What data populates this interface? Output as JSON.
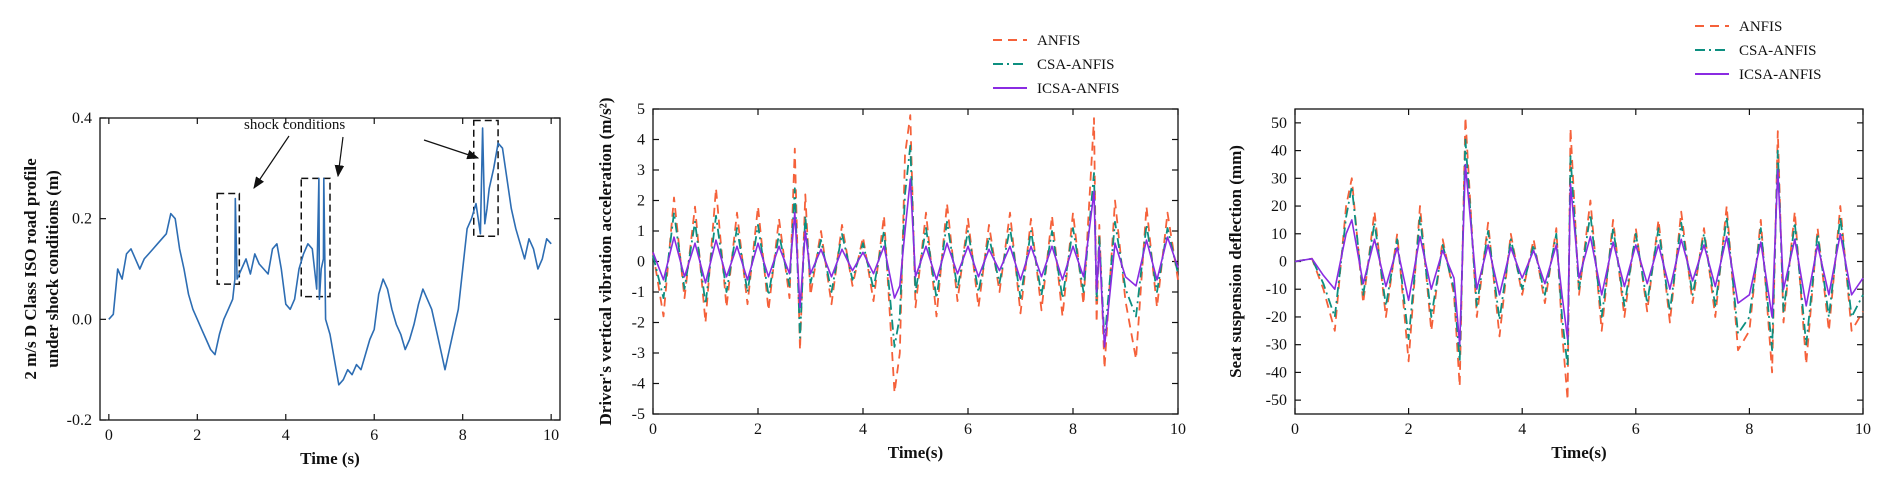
{
  "colors": {
    "anfis": "#f5613a",
    "csa": "#0d8f80",
    "icsa": "#8a2be2",
    "road": "#2d6db3"
  },
  "annotation": "shock conditions",
  "chart_data": [
    {
      "type": "line",
      "title": "",
      "xlabel": "Time (s)",
      "ylabel_lines": [
        "2 m/s D Class ISO road profile",
        "under shock conditions (m)"
      ],
      "xlim": [
        -0.2,
        10.2
      ],
      "ylim": [
        -0.2,
        0.4
      ],
      "xticks": [
        0,
        2,
        4,
        6,
        8,
        10
      ],
      "xtick_labels": [
        "0",
        "2",
        "4",
        "6",
        "8",
        "10"
      ],
      "yticks": [
        -0.2,
        0.0,
        0.2,
        0.4
      ],
      "ytick_labels": [
        "-0.2",
        "0.0",
        "0.2",
        "0.4"
      ],
      "series": [
        {
          "name": "road profile",
          "color": "#2d6db3",
          "x": [
            0,
            0.1,
            0.2,
            0.3,
            0.4,
            0.5,
            0.6,
            0.7,
            0.8,
            0.9,
            1.0,
            1.1,
            1.2,
            1.3,
            1.4,
            1.5,
            1.6,
            1.7,
            1.8,
            1.9,
            2.0,
            2.1,
            2.2,
            2.3,
            2.4,
            2.5,
            2.6,
            2.7,
            2.8,
            2.85,
            2.86,
            2.9,
            3.0,
            3.1,
            3.2,
            3.3,
            3.4,
            3.5,
            3.6,
            3.7,
            3.8,
            3.9,
            4.0,
            4.1,
            4.2,
            4.3,
            4.4,
            4.5,
            4.6,
            4.7,
            4.75,
            4.76,
            4.8,
            4.85,
            4.86,
            4.9,
            5.0,
            5.1,
            5.2,
            5.3,
            5.4,
            5.5,
            5.6,
            5.7,
            5.8,
            5.9,
            6.0,
            6.1,
            6.2,
            6.3,
            6.4,
            6.5,
            6.6,
            6.7,
            6.8,
            6.9,
            7.0,
            7.1,
            7.2,
            7.3,
            7.4,
            7.5,
            7.6,
            7.7,
            7.8,
            7.9,
            8.0,
            8.1,
            8.2,
            8.3,
            8.4,
            8.45,
            8.5,
            8.55,
            8.6,
            8.7,
            8.8,
            8.9,
            9.0,
            9.1,
            9.2,
            9.3,
            9.4,
            9.5,
            9.6,
            9.7,
            9.8,
            9.9,
            10.0
          ],
          "y": [
            0.0,
            0.01,
            0.1,
            0.08,
            0.13,
            0.14,
            0.12,
            0.1,
            0.12,
            0.13,
            0.14,
            0.15,
            0.16,
            0.17,
            0.21,
            0.2,
            0.14,
            0.1,
            0.05,
            0.02,
            0.0,
            -0.02,
            -0.04,
            -0.06,
            -0.07,
            -0.03,
            0.0,
            0.02,
            0.04,
            0.08,
            0.24,
            0.08,
            0.1,
            0.12,
            0.09,
            0.13,
            0.11,
            0.1,
            0.09,
            0.14,
            0.15,
            0.1,
            0.03,
            0.02,
            0.04,
            0.1,
            0.13,
            0.15,
            0.14,
            0.06,
            0.28,
            0.04,
            0.1,
            0.12,
            0.28,
            0.0,
            -0.03,
            -0.08,
            -0.13,
            -0.12,
            -0.1,
            -0.11,
            -0.09,
            -0.1,
            -0.07,
            -0.04,
            -0.02,
            0.05,
            0.08,
            0.06,
            0.02,
            -0.01,
            -0.03,
            -0.06,
            -0.04,
            -0.01,
            0.03,
            0.06,
            0.04,
            0.02,
            -0.02,
            -0.06,
            -0.1,
            -0.06,
            -0.02,
            0.02,
            0.1,
            0.18,
            0.2,
            0.23,
            0.17,
            0.38,
            0.19,
            0.22,
            0.26,
            0.3,
            0.35,
            0.34,
            0.28,
            0.22,
            0.18,
            0.15,
            0.12,
            0.16,
            0.14,
            0.1,
            0.12,
            0.16,
            0.15
          ]
        }
      ],
      "annotations": [
        {
          "text": "shock conditions",
          "boxes": [
            [
              2.45,
              2.95,
              0.07,
              0.25
            ],
            [
              4.35,
              5.0,
              0.045,
              0.28
            ],
            [
              8.25,
              8.8,
              0.165,
              0.395
            ]
          ]
        }
      ]
    },
    {
      "type": "line",
      "title": "",
      "xlabel": "Time(s)",
      "ylabel": "Driver's vertical vibration acceleration (m/s²)",
      "xlim": [
        0,
        10
      ],
      "ylim": [
        -5,
        5
      ],
      "xticks": [
        0,
        2,
        4,
        6,
        8,
        10
      ],
      "xtick_labels": [
        "0",
        "2",
        "4",
        "6",
        "8",
        "10"
      ],
      "yticks": [
        -5,
        -4,
        -3,
        -2,
        -1,
        0,
        1,
        2,
        3,
        4,
        5
      ],
      "ytick_labels": [
        "-5",
        "-4",
        "-3",
        "-2",
        "-1",
        "0",
        "1",
        "2",
        "3",
        "4",
        "5"
      ],
      "legend": [
        "ANFIS",
        "CSA-ANFIS",
        "ICSA-ANFIS"
      ],
      "legend_position": "top-right",
      "series": [
        {
          "name": "ANFIS",
          "style": "dashed",
          "color": "#f5613a",
          "x": [
            0,
            0.2,
            0.4,
            0.6,
            0.8,
            1.0,
            1.2,
            1.4,
            1.6,
            1.8,
            2.0,
            2.2,
            2.4,
            2.6,
            2.7,
            2.8,
            2.9,
            3.0,
            3.2,
            3.4,
            3.6,
            3.8,
            4.0,
            4.2,
            4.4,
            4.6,
            4.7,
            4.8,
            4.9,
            5.0,
            5.2,
            5.4,
            5.6,
            5.8,
            6.0,
            6.2,
            6.4,
            6.6,
            6.8,
            7.0,
            7.2,
            7.4,
            7.6,
            7.8,
            8.0,
            8.2,
            8.4,
            8.45,
            8.5,
            8.6,
            8.8,
            9.0,
            9.2,
            9.4,
            9.6,
            9.8,
            10.0
          ],
          "y": [
            0.3,
            -1.8,
            2.1,
            -1.2,
            1.8,
            -2.0,
            2.4,
            -1.5,
            1.6,
            -1.4,
            1.8,
            -1.6,
            1.4,
            -1.2,
            3.7,
            -2.9,
            2.2,
            -1.1,
            1.0,
            -1.4,
            1.2,
            -0.8,
            0.8,
            -1.3,
            1.5,
            -4.3,
            -3.0,
            3.5,
            4.8,
            -1.5,
            1.6,
            -1.8,
            1.9,
            -1.3,
            1.4,
            -1.5,
            1.2,
            -1.0,
            1.6,
            -1.7,
            1.4,
            -1.6,
            1.5,
            -1.8,
            1.6,
            -1.4,
            4.7,
            -2.0,
            1.2,
            -3.5,
            2.0,
            -1.3,
            -3.2,
            1.8,
            -1.5,
            1.6,
            -0.6
          ]
        },
        {
          "name": "CSA-ANFIS",
          "style": "dashdot",
          "color": "#0d8f80",
          "x": [
            0,
            0.2,
            0.4,
            0.6,
            0.8,
            1.0,
            1.2,
            1.4,
            1.6,
            1.8,
            2.0,
            2.2,
            2.4,
            2.6,
            2.7,
            2.8,
            2.9,
            3.0,
            3.2,
            3.4,
            3.6,
            3.8,
            4.0,
            4.2,
            4.4,
            4.6,
            4.7,
            4.8,
            4.9,
            5.0,
            5.2,
            5.4,
            5.6,
            5.8,
            6.0,
            6.2,
            6.4,
            6.6,
            6.8,
            7.0,
            7.2,
            7.4,
            7.6,
            7.8,
            8.0,
            8.2,
            8.4,
            8.45,
            8.5,
            8.6,
            8.8,
            9.0,
            9.2,
            9.4,
            9.6,
            9.8,
            10.0
          ],
          "y": [
            0.2,
            -1.2,
            1.6,
            -0.9,
            1.3,
            -1.4,
            1.5,
            -1.0,
            1.1,
            -1.0,
            1.2,
            -1.1,
            0.9,
            -0.8,
            2.4,
            -2.5,
            1.5,
            -0.7,
            0.7,
            -1.0,
            0.9,
            -0.6,
            0.6,
            -0.9,
            1.0,
            -2.8,
            -1.8,
            2.2,
            3.8,
            -1.0,
            1.1,
            -1.2,
            1.3,
            -0.9,
            1.0,
            -1.0,
            0.8,
            -0.7,
            1.1,
            -1.2,
            1.0,
            -1.1,
            1.0,
            -1.2,
            1.1,
            -1.0,
            2.9,
            -1.3,
            0.8,
            -2.6,
            1.3,
            -0.9,
            -1.8,
            1.2,
            -1.0,
            1.1,
            -0.4
          ]
        },
        {
          "name": "ICSA-ANFIS",
          "style": "solid",
          "color": "#8a2be2",
          "x": [
            0,
            0.2,
            0.4,
            0.6,
            0.8,
            1.0,
            1.2,
            1.4,
            1.6,
            1.8,
            2.0,
            2.2,
            2.4,
            2.6,
            2.7,
            2.8,
            2.9,
            3.0,
            3.2,
            3.4,
            3.6,
            3.8,
            4.0,
            4.2,
            4.4,
            4.6,
            4.7,
            4.8,
            4.9,
            5.0,
            5.2,
            5.4,
            5.6,
            5.8,
            6.0,
            6.2,
            6.4,
            6.6,
            6.8,
            7.0,
            7.2,
            7.4,
            7.6,
            7.8,
            8.0,
            8.2,
            8.4,
            8.45,
            8.5,
            8.6,
            8.8,
            9.0,
            9.2,
            9.4,
            9.6,
            9.8,
            10.0
          ],
          "y": [
            0.3,
            -0.6,
            0.8,
            -0.5,
            0.6,
            -0.7,
            0.7,
            -0.5,
            0.5,
            -0.6,
            0.6,
            -0.5,
            0.5,
            -0.4,
            1.6,
            -1.5,
            1.0,
            -0.4,
            0.4,
            -0.5,
            0.4,
            -0.3,
            0.3,
            -0.4,
            0.5,
            -1.2,
            -0.8,
            1.0,
            2.7,
            -0.5,
            0.5,
            -0.6,
            0.6,
            -0.4,
            0.5,
            -0.5,
            0.4,
            -0.3,
            0.5,
            -0.6,
            0.5,
            -0.5,
            0.5,
            -0.6,
            0.5,
            -0.5,
            2.3,
            -1.0,
            0.5,
            -2.8,
            0.6,
            -0.5,
            -0.8,
            0.7,
            -0.6,
            0.8,
            -0.2
          ]
        }
      ]
    },
    {
      "type": "line",
      "title": "",
      "xlabel": "Time(s)",
      "ylabel": "Seat suspension deflection (mm)",
      "xlim": [
        0,
        10
      ],
      "ylim": [
        -55,
        55
      ],
      "xticks": [
        0,
        2,
        4,
        6,
        8,
        10
      ],
      "xtick_labels": [
        "0",
        "2",
        "4",
        "6",
        "8",
        "10"
      ],
      "yticks": [
        -50,
        -40,
        -30,
        -20,
        -10,
        0,
        10,
        20,
        30,
        40,
        50
      ],
      "ytick_labels": [
        "-50",
        "-40",
        "-30",
        "-20",
        "-10",
        "0",
        "10",
        "20",
        "30",
        "40",
        "50"
      ],
      "legend": [
        "ANFIS",
        "CSA-ANFIS",
        "ICSA-ANFIS"
      ],
      "legend_position": "top-right",
      "series": [
        {
          "name": "ANFIS",
          "style": "dashed",
          "color": "#f5613a",
          "x": [
            0,
            0.3,
            0.5,
            0.7,
            0.9,
            1.0,
            1.2,
            1.4,
            1.6,
            1.8,
            2.0,
            2.2,
            2.4,
            2.6,
            2.8,
            2.9,
            3.0,
            3.2,
            3.4,
            3.6,
            3.8,
            4.0,
            4.2,
            4.4,
            4.6,
            4.7,
            4.8,
            4.85,
            5.0,
            5.2,
            5.4,
            5.6,
            5.8,
            6.0,
            6.2,
            6.4,
            6.6,
            6.8,
            7.0,
            7.2,
            7.4,
            7.6,
            7.8,
            8.0,
            8.2,
            8.4,
            8.5,
            8.6,
            8.8,
            9.0,
            9.2,
            9.4,
            9.6,
            9.8,
            10.0
          ],
          "y": [
            0,
            1,
            -10,
            -25,
            20,
            30,
            -15,
            18,
            -20,
            10,
            -36,
            20,
            -25,
            8,
            -12,
            -45,
            52,
            -20,
            14,
            -27,
            10,
            -12,
            8,
            -15,
            12,
            -25,
            -50,
            48,
            -12,
            22,
            -25,
            15,
            -20,
            12,
            -18,
            15,
            -22,
            18,
            -15,
            12,
            -20,
            20,
            -32,
            -25,
            15,
            -40,
            47,
            -22,
            18,
            -37,
            12,
            -25,
            20,
            -25,
            -18
          ]
        },
        {
          "name": "CSA-ANFIS",
          "style": "dashdot",
          "color": "#0d8f80",
          "x": [
            0,
            0.3,
            0.5,
            0.7,
            0.9,
            1.0,
            1.2,
            1.4,
            1.6,
            1.8,
            2.0,
            2.2,
            2.4,
            2.6,
            2.8,
            2.9,
            3.0,
            3.2,
            3.4,
            3.6,
            3.8,
            4.0,
            4.2,
            4.4,
            4.6,
            4.7,
            4.8,
            4.85,
            5.0,
            5.2,
            5.4,
            5.6,
            5.8,
            6.0,
            6.2,
            6.4,
            6.6,
            6.8,
            7.0,
            7.2,
            7.4,
            7.6,
            7.8,
            8.0,
            8.2,
            8.4,
            8.5,
            8.6,
            8.8,
            9.0,
            9.2,
            9.4,
            9.6,
            9.8,
            10.0
          ],
          "y": [
            0,
            1,
            -8,
            -20,
            16,
            27,
            -12,
            14,
            -16,
            8,
            -28,
            16,
            -20,
            6,
            -10,
            -36,
            44,
            -16,
            11,
            -21,
            8,
            -10,
            6,
            -12,
            10,
            -20,
            -38,
            38,
            -10,
            17,
            -20,
            12,
            -16,
            10,
            -15,
            12,
            -18,
            14,
            -12,
            10,
            -16,
            16,
            -26,
            -20,
            12,
            -32,
            40,
            -18,
            14,
            -30,
            10,
            -20,
            16,
            -20,
            -12
          ]
        },
        {
          "name": "ICSA-ANFIS",
          "style": "solid",
          "color": "#8a2be2",
          "x": [
            0,
            0.3,
            0.5,
            0.7,
            0.9,
            1.0,
            1.2,
            1.4,
            1.6,
            1.8,
            2.0,
            2.2,
            2.4,
            2.6,
            2.8,
            2.9,
            3.0,
            3.2,
            3.4,
            3.6,
            3.8,
            4.0,
            4.2,
            4.4,
            4.6,
            4.7,
            4.8,
            4.85,
            5.0,
            5.2,
            5.4,
            5.6,
            5.8,
            6.0,
            6.2,
            6.4,
            6.6,
            6.8,
            7.0,
            7.2,
            7.4,
            7.6,
            7.8,
            8.0,
            8.2,
            8.4,
            8.5,
            8.6,
            8.8,
            9.0,
            9.2,
            9.4,
            9.6,
            9.8,
            10.0
          ],
          "y": [
            0,
            1,
            -5,
            -10,
            10,
            15,
            -8,
            8,
            -9,
            5,
            -14,
            9,
            -10,
            4,
            -6,
            -30,
            35,
            -10,
            6,
            -12,
            5,
            -6,
            4,
            -8,
            6,
            -12,
            -28,
            28,
            -6,
            9,
            -12,
            7,
            -9,
            6,
            -8,
            6,
            -10,
            8,
            -7,
            6,
            -9,
            9,
            -15,
            -12,
            7,
            -20,
            33,
            -10,
            8,
            -16,
            6,
            -12,
            10,
            -12,
            -6
          ]
        }
      ]
    }
  ]
}
